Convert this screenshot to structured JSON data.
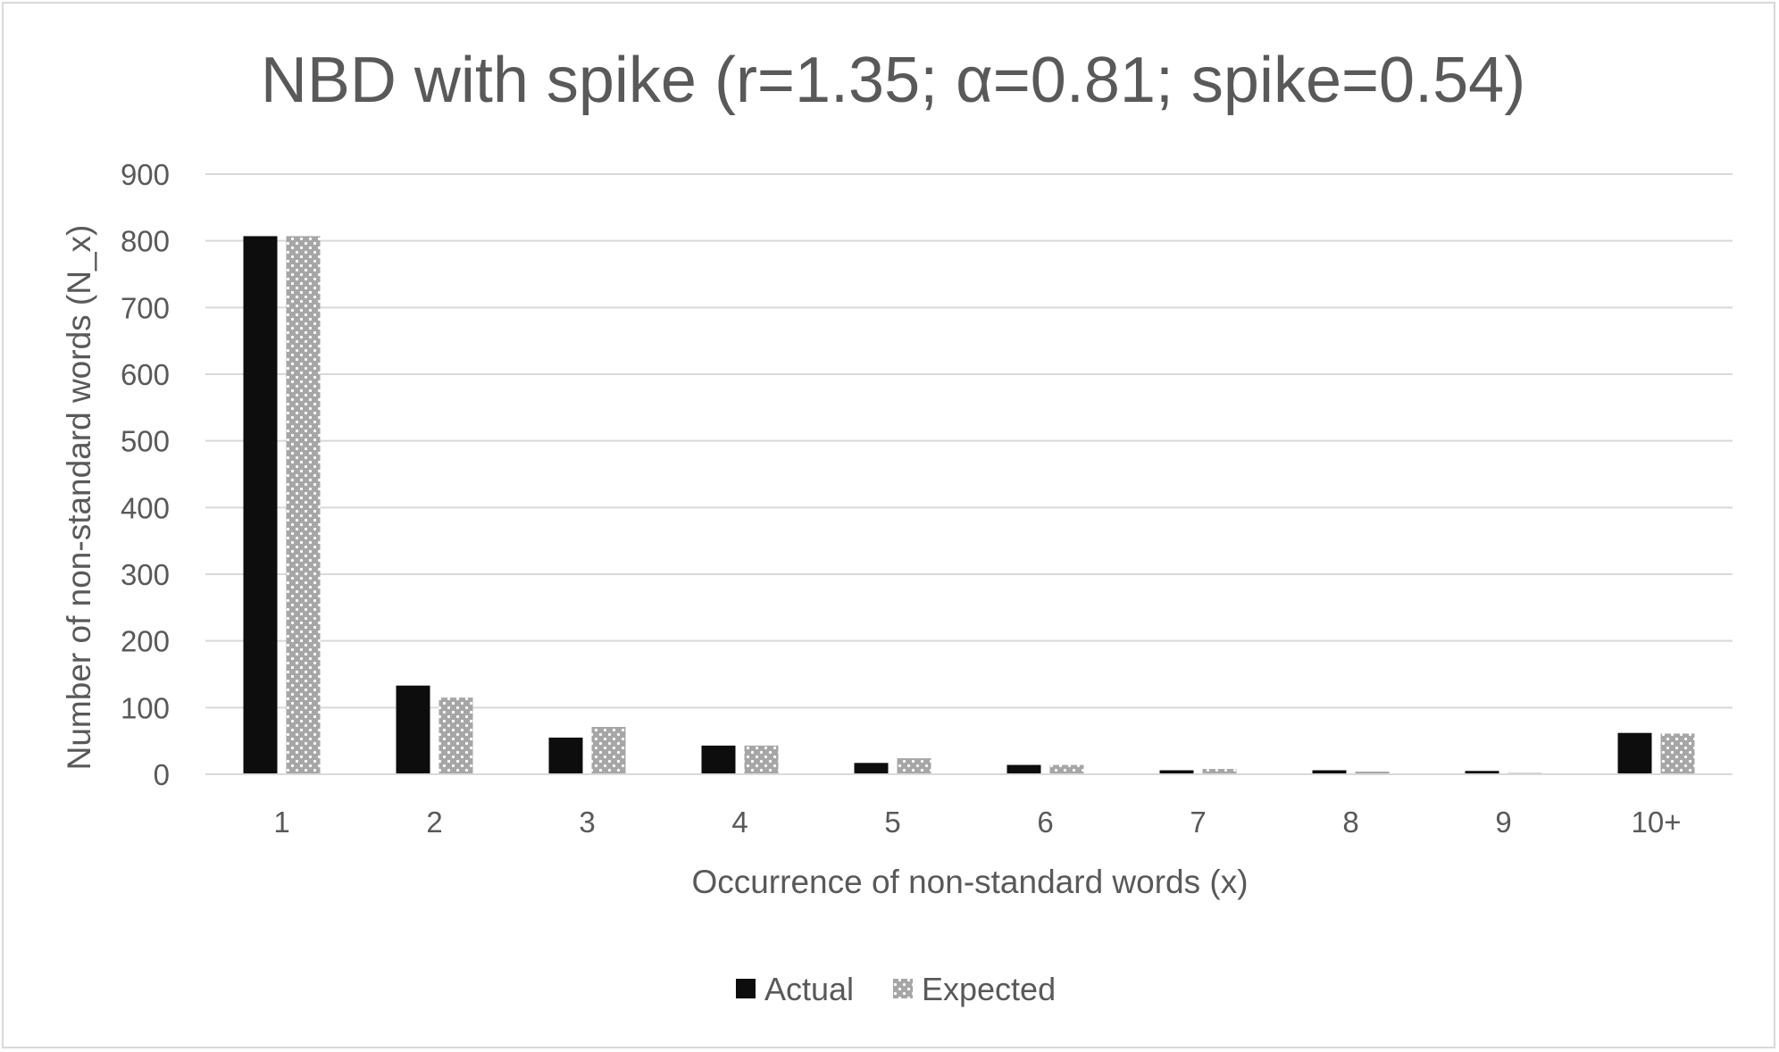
{
  "chart_data": {
    "type": "bar",
    "title": "NBD with spike (r=1.35; α=0.81; spike=0.54)",
    "xlabel": "Occurrence of non-standard words (x)",
    "ylabel": "Number of non-standard words (N_x)",
    "categories": [
      "1",
      "2",
      "3",
      "4",
      "5",
      "6",
      "7",
      "8",
      "9",
      "10+"
    ],
    "series": [
      {
        "name": "Actual",
        "values": [
          807,
          133,
          55,
          43,
          17,
          14,
          6,
          6,
          5,
          62
        ],
        "color": "#0d0d0d",
        "pattern": "solid"
      },
      {
        "name": "Expected",
        "values": [
          807,
          115,
          71,
          43,
          24,
          14,
          8,
          4,
          2,
          61
        ],
        "color": "#a6a6a6",
        "pattern": "dotted"
      }
    ],
    "ylim": [
      0,
      900
    ],
    "yticks": [
      0,
      100,
      200,
      300,
      400,
      500,
      600,
      700,
      800,
      900
    ],
    "grid": true,
    "legend_position": "bottom"
  }
}
